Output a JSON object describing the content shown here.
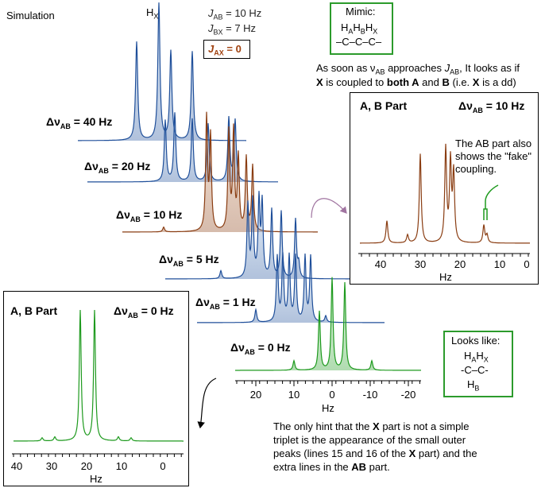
{
  "simulation_label": "Simulation",
  "params": {
    "jab": "J",
    "jab_sub": "AB",
    "jab_val": " = 10 Hz",
    "jbx": "J",
    "jbx_sub": "BX",
    "jbx_val": " = 7 Hz",
    "jax": "J",
    "jax_sub": "AX",
    "jax_val": " = 0"
  },
  "hx_peak_label": "H",
  "hx_peak_sub": "X",
  "mimic": {
    "title": "Mimic:",
    "top": "H",
    "subs": [
      "A",
      "B",
      "X"
    ],
    "chain": "–C–C–C–"
  },
  "approach_text": {
    "line1": "As soon as ν",
    "line1_sub": "AB",
    "line1_rest": " approaches ",
    "line1_j": "J",
    "line1_jsub": "AB",
    "line1_end": ", It looks as if",
    "line2_a": "X",
    "line2_b": " is coupled to ",
    "line2_c": "both A",
    "line2_d": " and ",
    "line2_e": "B",
    "line2_f": " (i.e. ",
    "line2_g": "X",
    "line2_h": " is a dd)"
  },
  "traces": [
    {
      "label": "Δν",
      "sub": "AB",
      "val": " = 40 Hz",
      "color": "#1f4f9a"
    },
    {
      "label": "Δν",
      "sub": "AB",
      "val": " = 20 Hz",
      "color": "#1f4f9a"
    },
    {
      "label": "Δν",
      "sub": "AB",
      "val": " = 10 Hz",
      "color": "#8a3d12"
    },
    {
      "label": "Δν",
      "sub": "AB",
      "val": " = 5 Hz",
      "color": "#1f4f9a"
    },
    {
      "label": "Δν",
      "sub": "AB",
      "val": " = 1 Hz",
      "color": "#1f4f9a"
    },
    {
      "label": "Δν",
      "sub": "AB",
      "val": " = 0 Hz",
      "color": "#1e9a1e"
    }
  ],
  "main_axis": {
    "ticks": [
      "20",
      "10",
      "0",
      "-10",
      "-20"
    ],
    "unit": "Hz"
  },
  "inset_right": {
    "title": "A, B Part",
    "delta": "Δν",
    "delta_sub": "AB",
    "delta_val": " = 10 Hz",
    "note_line1": "The AB part also",
    "note_line2": "shows the \"fake\"",
    "note_line3": "coupling.",
    "ticks": [
      "40",
      "30",
      "20",
      "10",
      "0"
    ],
    "unit": "Hz",
    "color": "#8a3d12"
  },
  "inset_left": {
    "title": "A, B Part",
    "delta": "Δν",
    "delta_sub": "AB",
    "delta_val": " = 0 Hz",
    "ticks": [
      "40",
      "30",
      "20",
      "10",
      "0"
    ],
    "unit": "Hz",
    "color": "#1e9a1e"
  },
  "looks_like": {
    "title": "Looks like:",
    "top": "H",
    "top_subs": [
      "A",
      "X"
    ],
    "chain": "-C–C-",
    "bottom": "H",
    "bottom_sub": "B"
  },
  "footer": {
    "line1": "The only hint that the ",
    "line1_x": "X",
    "line1_rest": " part is not a simple",
    "line2": "triplet is the appearance of the small outer",
    "line3_a": "peaks (lines 15 and 16 of the ",
    "line3_x": "X",
    "line3_b": " part) and the",
    "line4_a": "extra lines in the ",
    "line4_ab": "AB",
    "line4_b": " part."
  }
}
